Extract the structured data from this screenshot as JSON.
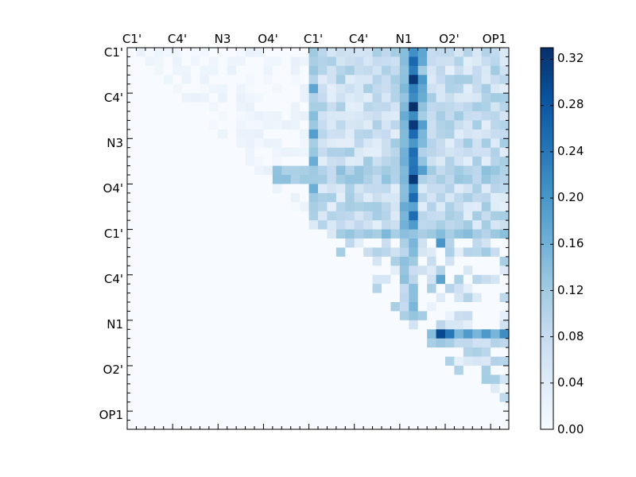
{
  "chart_data": {
    "type": "heatmap",
    "title": "",
    "xlabel": "",
    "ylabel": "",
    "size": 42,
    "tick_labels": [
      "C1'",
      "C4'",
      "N3",
      "O4'",
      "C1'",
      "C4'",
      "N1",
      "O2'",
      "OP1"
    ],
    "tick_positions": [
      0,
      5,
      10,
      15,
      20,
      25,
      30,
      35,
      40
    ],
    "colorbar": {
      "min": 0.0,
      "max": 0.33,
      "ticks": [
        "0.00",
        "0.04",
        "0.08",
        "0.12",
        "0.16",
        "0.20",
        "0.24",
        "0.28",
        "0.32"
      ],
      "colormap": "Blues"
    },
    "colors": {
      "low": "#f7fbff",
      "mid": "#6baed6",
      "high": "#08306b"
    },
    "background_value": 0.0,
    "notable_cells": [
      {
        "row": 3,
        "col": 31,
        "value": 0.32
      },
      {
        "row": 6,
        "col": 31,
        "value": 0.33
      },
      {
        "row": 8,
        "col": 31,
        "value": 0.32
      },
      {
        "row": 14,
        "col": 31,
        "value": 0.32
      },
      {
        "row": 31,
        "col": 34,
        "value": 0.3
      },
      {
        "row": 31,
        "col": 35,
        "value": 0.24
      },
      {
        "row": 21,
        "col": 34,
        "value": 0.2
      },
      {
        "row": 25,
        "col": 34,
        "value": 0.18
      }
    ]
  }
}
